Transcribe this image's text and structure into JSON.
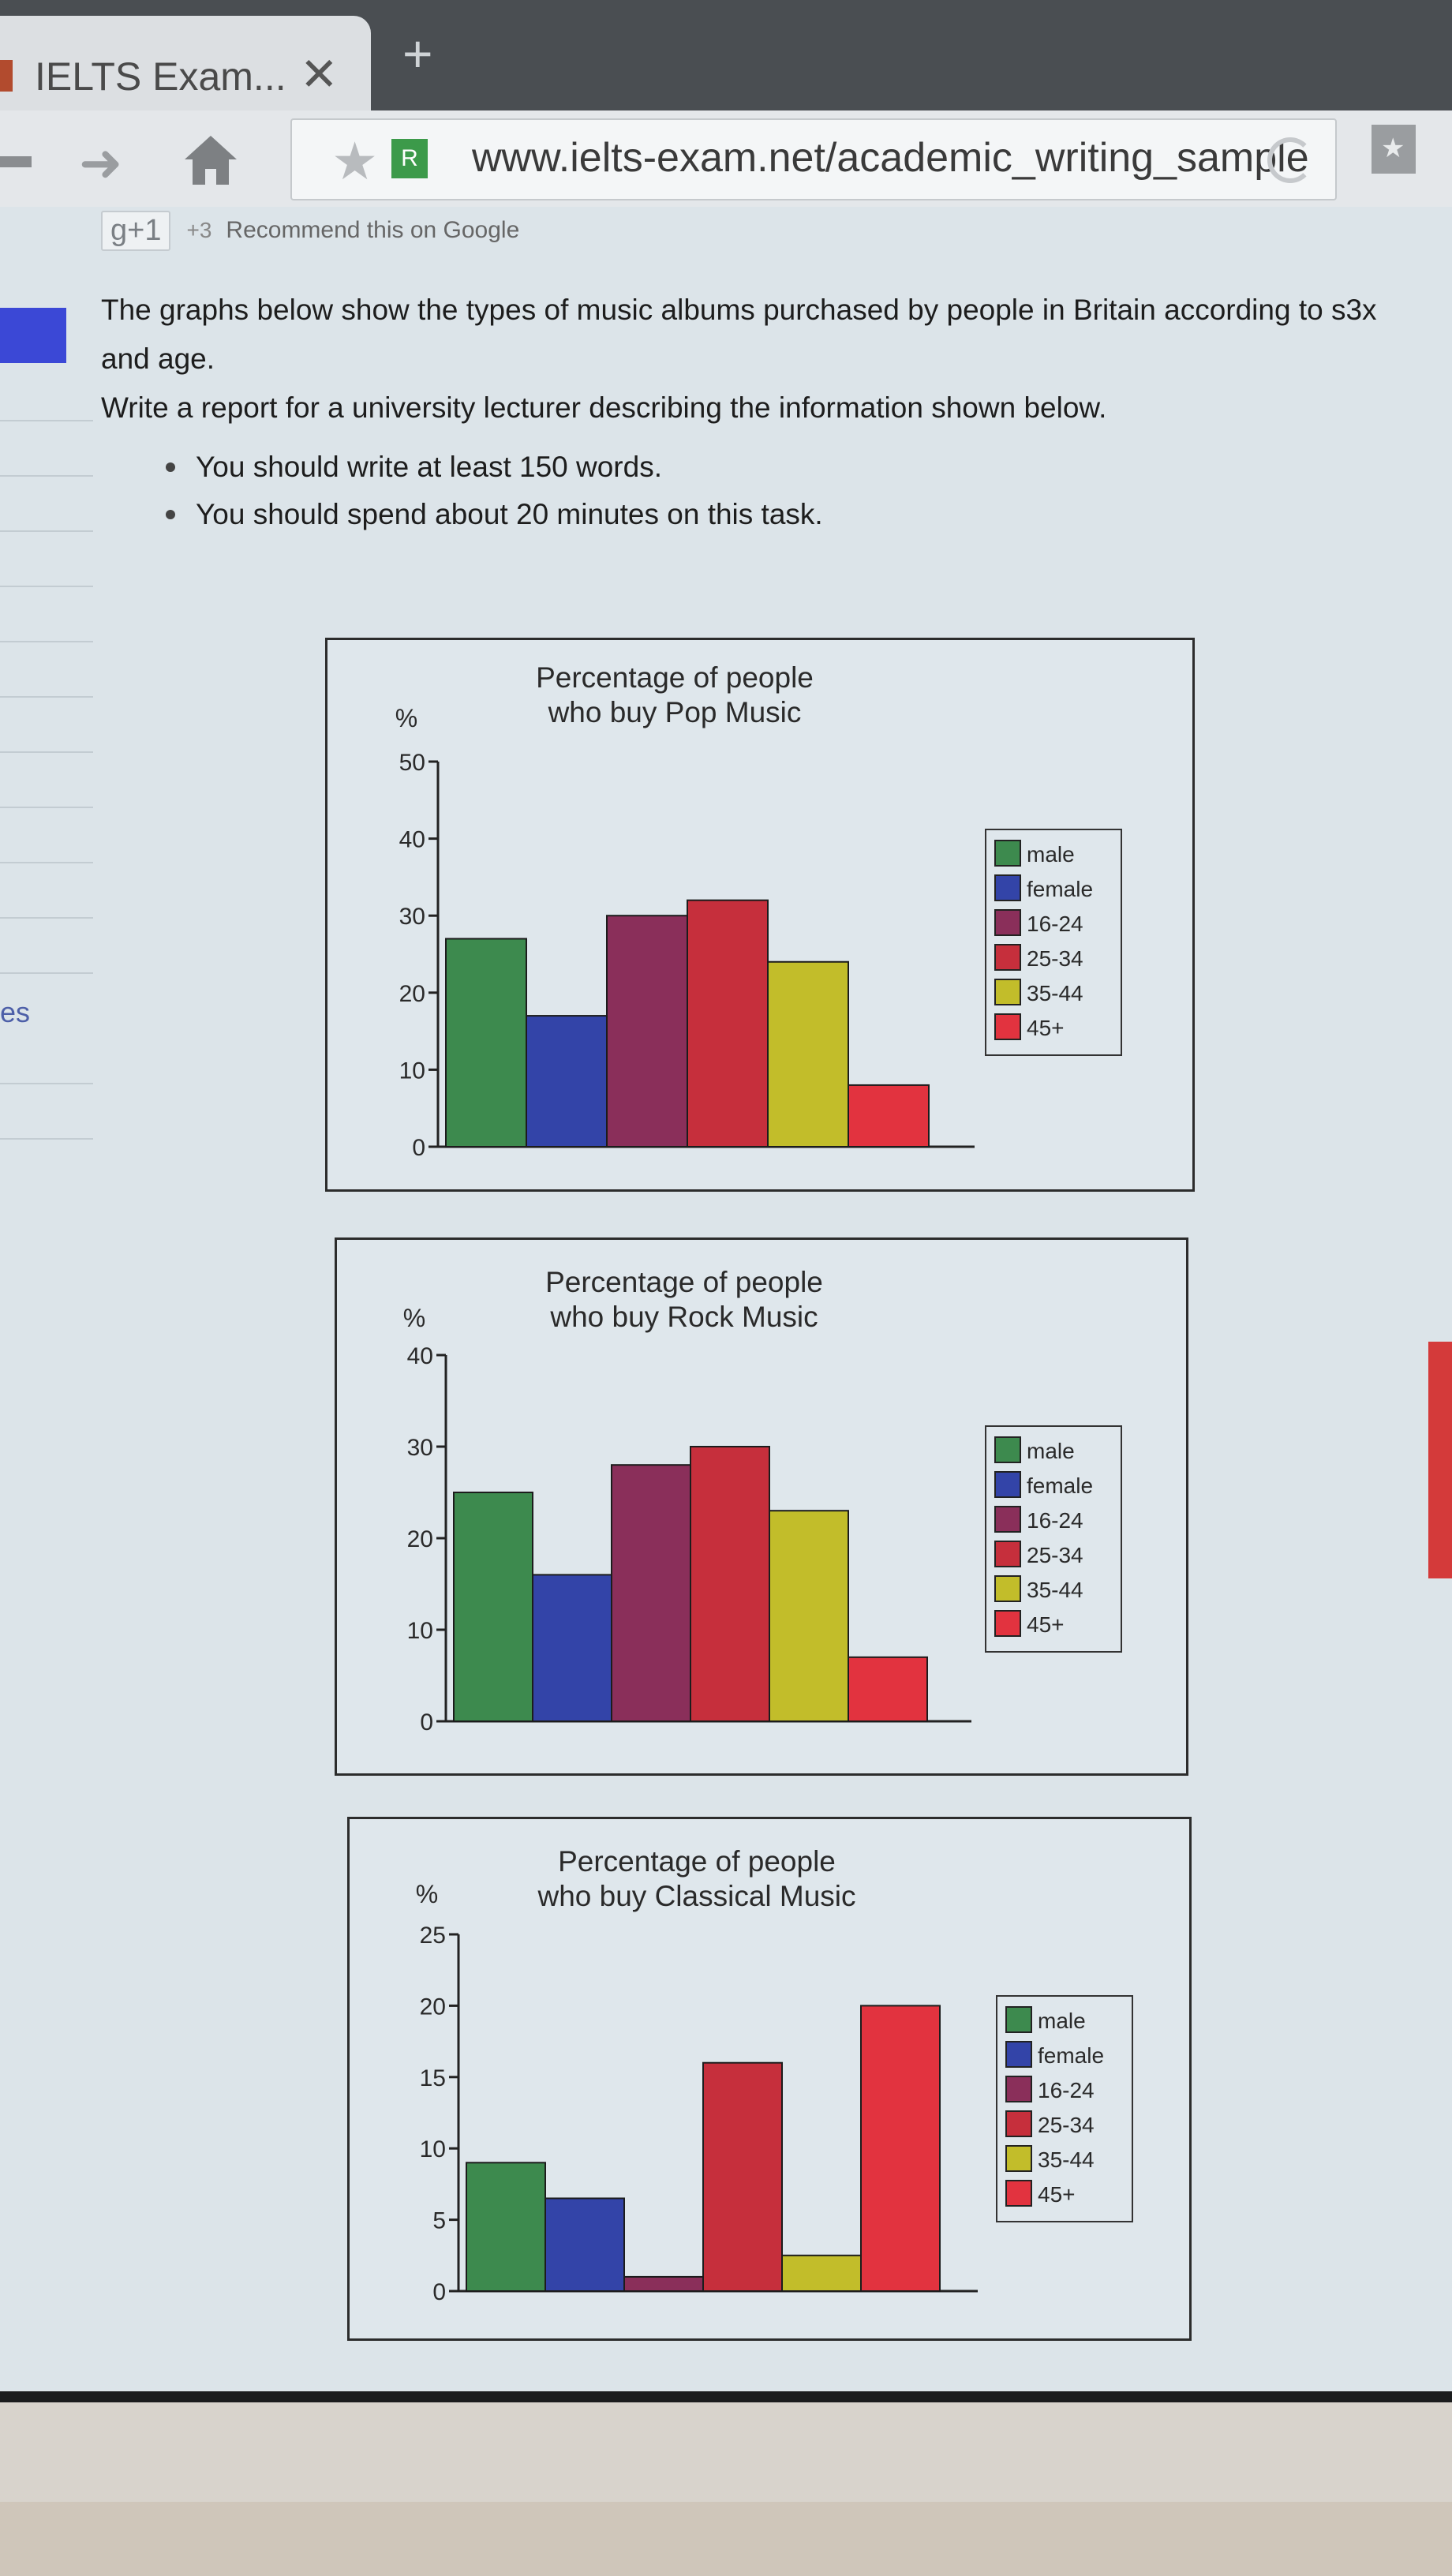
{
  "browser": {
    "tab_title": "IELTS Exam...",
    "tab_close": "✕",
    "new_tab": "+",
    "url": "www.ielts-exam.net/academic_writing_sample",
    "site_favicon": "R"
  },
  "social": {
    "gplus_label": "g+1",
    "count": "+3",
    "text": "Recommend this on Google"
  },
  "sidebar": {
    "snippet": "es"
  },
  "task": {
    "line1": "The graphs below show the types of music albums purchased by people in Britain according to s3x",
    "line2": "and age.",
    "line3": "Write a report for a university lecturer describing the information shown below.",
    "bullets": [
      "You should write at least 150 words.",
      "You should spend about 20 minutes on this task."
    ]
  },
  "colors": {
    "male": "#3d8a4e",
    "female": "#3344a8",
    "16-24": "#8a2f5a",
    "25-34": "#c62f3c",
    "35-44": "#c2bd2a",
    "45+": "#e2333f"
  },
  "chart_data": [
    {
      "type": "bar",
      "title": "Percentage of people\nwho buy Pop Music",
      "ylabel": "%",
      "categories": [
        "male",
        "female",
        "16-24",
        "25-34",
        "35-44",
        "45+"
      ],
      "values": [
        27,
        17,
        30,
        32,
        24,
        8
      ],
      "ylim": [
        0,
        50
      ],
      "yticks": [
        0,
        10,
        20,
        30,
        40,
        50
      ],
      "legend": [
        "male",
        "female",
        "16-24",
        "25-34",
        "35-44",
        "45+"
      ],
      "legend_position": "right",
      "grid": false
    },
    {
      "type": "bar",
      "title": "Percentage of people\nwho buy Rock Music",
      "ylabel": "%",
      "categories": [
        "male",
        "female",
        "16-24",
        "25-34",
        "35-44",
        "45+"
      ],
      "values": [
        25,
        16,
        28,
        30,
        23,
        7
      ],
      "ylim": [
        0,
        40
      ],
      "yticks": [
        0,
        10,
        20,
        30,
        40
      ],
      "legend": [
        "male",
        "female",
        "16-24",
        "25-34",
        "35-44",
        "45+"
      ],
      "legend_position": "right",
      "grid": false
    },
    {
      "type": "bar",
      "title": "Percentage of people\nwho buy Classical Music",
      "ylabel": "%",
      "categories": [
        "male",
        "female",
        "16-24",
        "25-34",
        "35-44",
        "45+"
      ],
      "values": [
        9,
        6.5,
        1,
        16,
        2.5,
        20
      ],
      "ylim": [
        0,
        25
      ],
      "yticks": [
        0,
        5,
        10,
        15,
        20,
        25
      ],
      "legend": [
        "male",
        "female",
        "16-24",
        "25-34",
        "35-44",
        "45+"
      ],
      "legend_position": "right",
      "grid": false
    }
  ]
}
